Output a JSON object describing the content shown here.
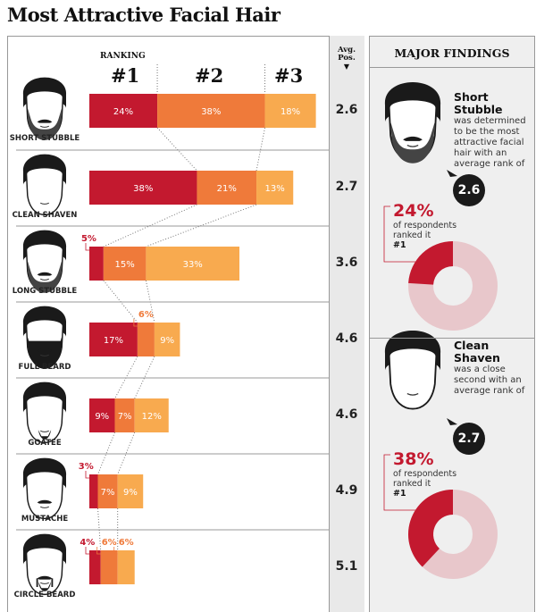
{
  "title": "Most Attractive Facial Hair",
  "header": {
    "ranking": "RANKING",
    "rank_labels": [
      "#1",
      "#2",
      "#3"
    ],
    "avg_label_1": "Avg.",
    "avg_label_2": "Pos."
  },
  "colors": {
    "rank1": "#c3192f",
    "rank2": "#ef7a3a",
    "rank3": "#f8aa4f",
    "donut_bg": "#e8c7cb",
    "panel": "#efefef"
  },
  "chart_data": {
    "type": "bar",
    "stacked": true,
    "orientation": "horizontal",
    "categories": [
      "SHORT STUBBLE",
      "CLEAN SHAVEN",
      "LONG STUBBLE",
      "FULL BEARD",
      "GOATEE",
      "MUSTACHE",
      "CIRCLE BEARD"
    ],
    "series": [
      {
        "name": "#1",
        "values": [
          24,
          38,
          5,
          17,
          9,
          3,
          4
        ]
      },
      {
        "name": "#2",
        "values": [
          38,
          21,
          15,
          6,
          7,
          7,
          6
        ]
      },
      {
        "name": "#3",
        "values": [
          18,
          13,
          33,
          9,
          12,
          9,
          6
        ]
      }
    ],
    "value_labels": [
      [
        "24%",
        "38%",
        "18%"
      ],
      [
        "38%",
        "21%",
        "13%"
      ],
      [
        "5%",
        "15%",
        "33%"
      ],
      [
        "17%",
        "6%",
        "9%"
      ],
      [
        "9%",
        "7%",
        "12%"
      ],
      [
        "3%",
        "7%",
        "9%"
      ],
      [
        "4%",
        "6%",
        "6%"
      ]
    ],
    "avg_position": [
      "2.6",
      "2.7",
      "3.6",
      "4.6",
      "4.6",
      "4.9",
      "5.1"
    ]
  },
  "findings": {
    "title": "MAJOR FINDINGS",
    "items": [
      {
        "name": "Short Stubble",
        "text": "was determined to be the most attractive facial hair with an average rank of",
        "avg": "2.6",
        "pct": "24%",
        "pct_value": 24,
        "pct_text": "of respondents ranked it",
        "rank": "#1",
        "face": "short-stubble"
      },
      {
        "name": "Clean Shaven",
        "text": "was a close second with an average rank of",
        "avg": "2.7",
        "pct": "38%",
        "pct_value": 38,
        "pct_text": "of respondents ranked it",
        "rank": "#1",
        "face": "clean-shaven"
      }
    ]
  }
}
